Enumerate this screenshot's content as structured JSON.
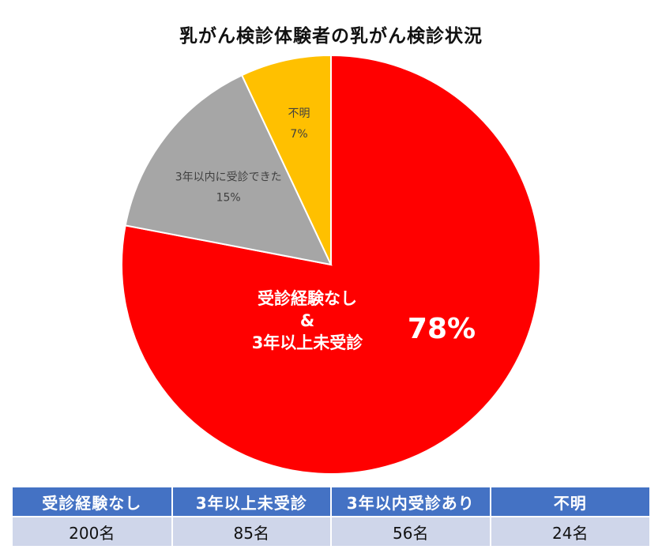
{
  "chart_data": {
    "type": "pie",
    "title": "乳がん検診体験者の乳がん検診状況",
    "slices": [
      {
        "label_lines": [
          "受診経験なし",
          "&",
          "3年以上未受診"
        ],
        "value_label": "78%",
        "value": 78,
        "color": "#ff0000"
      },
      {
        "label_lines": [
          "3年以内に受診できた"
        ],
        "value_label": "15%",
        "value": 15,
        "color": "#a6a6a6"
      },
      {
        "label_lines": [
          "不明"
        ],
        "value_label": "7%",
        "value": 7,
        "color": "#ffc000"
      }
    ]
  },
  "table": {
    "headers": [
      "受診経験なし",
      "3年以上未受診",
      "3年以内受診あり",
      "不明"
    ],
    "values": [
      "200名",
      "85名",
      "56名",
      "24名"
    ],
    "colors": {
      "header_bg": "#4472c4",
      "row_bg": "#cfd6ea"
    }
  }
}
